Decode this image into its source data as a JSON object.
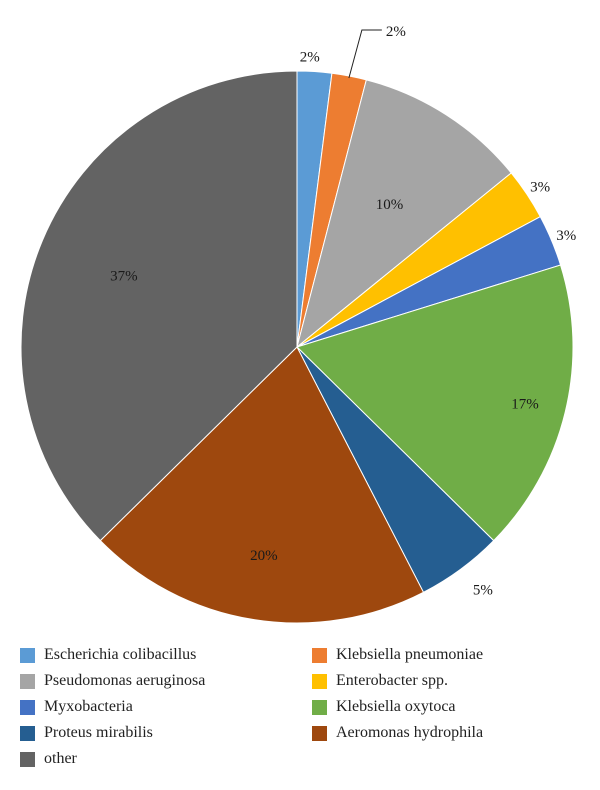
{
  "chart_data": {
    "type": "pie",
    "title": "",
    "start_angle_deg": 0,
    "direction": "clockwise",
    "legend_position": "bottom",
    "slices": [
      {
        "label": "Escherichia colibacillus",
        "value": 2,
        "display": "2%",
        "color": "#5b9bd5"
      },
      {
        "label": "Klebsiella pneumoniae",
        "value": 2,
        "display": "2%",
        "color": "#ed7d31"
      },
      {
        "label": "Pseudomonas aeruginosa",
        "value": 10,
        "display": "10%",
        "color": "#a5a5a5"
      },
      {
        "label": "Enterobacter spp.",
        "value": 3,
        "display": "3%",
        "color": "#ffc000"
      },
      {
        "label": "Myxobacteria",
        "value": 3,
        "display": "3%",
        "color": "#4472c4"
      },
      {
        "label": "Klebsiella oxytoca",
        "value": 17,
        "display": "17%",
        "color": "#70ad47"
      },
      {
        "label": "Proteus mirabilis",
        "value": 5,
        "display": "5%",
        "color": "#255e91"
      },
      {
        "label": "Aeromonas hydrophila",
        "value": 20,
        "display": "20%",
        "color": "#9e480e"
      },
      {
        "label": "other",
        "value": 37,
        "display": "37%",
        "color": "#636363"
      }
    ]
  }
}
